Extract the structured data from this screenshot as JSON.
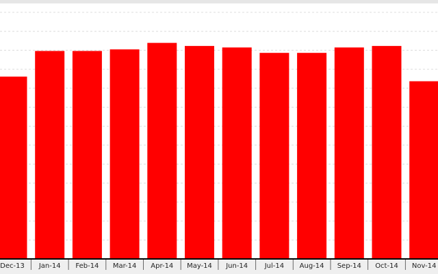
{
  "chart_data": {
    "type": "bar",
    "title": "",
    "xlabel": "",
    "ylabel": "",
    "categories": [
      "Dec-13",
      "Jan-14",
      "Feb-14",
      "Mar-14",
      "Apr-14",
      "May-14",
      "Jun-14",
      "Jul-14",
      "Aug-14",
      "Sep-14",
      "Oct-14",
      "Nov-14"
    ],
    "values": [
      94.8,
      108.2,
      108.2,
      109.0,
      112.4,
      110.8,
      110.0,
      107.2,
      107.2,
      110.0,
      110.8,
      92.4
    ],
    "ylim": [
      0,
      133
    ],
    "grid": true,
    "bar_color": "#ff0000",
    "legend": "none"
  }
}
